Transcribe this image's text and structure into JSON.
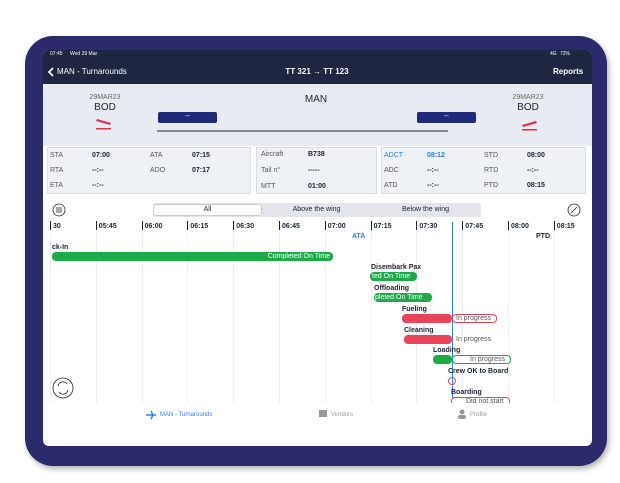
{
  "status_bar": {
    "time": "07:45",
    "date": "Wed 29 Mar",
    "network": "4G",
    "battery": "72%"
  },
  "nav": {
    "back": "MAN - Turnarounds",
    "title": "TT 321 → TT 123",
    "action": "Reports"
  },
  "flight": {
    "arrival": {
      "date": "29MAR23",
      "airport": "BOD"
    },
    "station": "MAN",
    "arrival_box": "--",
    "departure_box": "--",
    "departure": {
      "date": "29MAR23",
      "airport": "BOD"
    }
  },
  "info": {
    "arrival_times": [
      {
        "label": "STA",
        "value": "07:00"
      },
      {
        "label": "ATA",
        "value": "07:15"
      },
      {
        "label": "RTA",
        "value": "--:--"
      },
      {
        "label": "ADO",
        "value": "07:17"
      },
      {
        "label": "ETA",
        "value": "--:--"
      }
    ],
    "aircraft": [
      {
        "label": "Aircraft",
        "value": "B738"
      },
      {
        "label": "Tail n°",
        "value": "-----"
      },
      {
        "label": "MTT",
        "value": "01:00"
      }
    ],
    "departure_times": [
      {
        "label": "ADCT",
        "value": "08:12"
      },
      {
        "label": "STD",
        "value": "08:00"
      },
      {
        "label": "ADC",
        "value": "--:--"
      },
      {
        "label": "RTD",
        "value": "--:--"
      },
      {
        "label": "ATD",
        "value": "--:--"
      },
      {
        "label": "PTD",
        "value": "08:15"
      }
    ]
  },
  "segments": [
    "All",
    "Above the wing",
    "Below the wing"
  ],
  "timeline": {
    "ticks": [
      "30",
      "05:45",
      "06:00",
      "06:15",
      "06:30",
      "06:45",
      "07:00",
      "07:15",
      "07:30",
      "07:45",
      "08:00",
      "08:15"
    ],
    "markers": [
      "ATA",
      "PTD"
    ]
  },
  "tasks": [
    {
      "name": "ck-In",
      "status": "Completed On Time"
    },
    {
      "name": "Disembark Pax",
      "status": "ted On Time"
    },
    {
      "name": "Offloading",
      "status": "pleted On Time"
    },
    {
      "name": "Fueling",
      "status": "In progress"
    },
    {
      "name": "Cleaning",
      "status": "In progress"
    },
    {
      "name": "Loading",
      "status": "In progress"
    },
    {
      "name": "Crew OK to Board"
    },
    {
      "name": "Boarding",
      "status": "Did not start"
    }
  ],
  "tabs": [
    "MAN - Turnarounds",
    "Vendors",
    "Profile"
  ]
}
